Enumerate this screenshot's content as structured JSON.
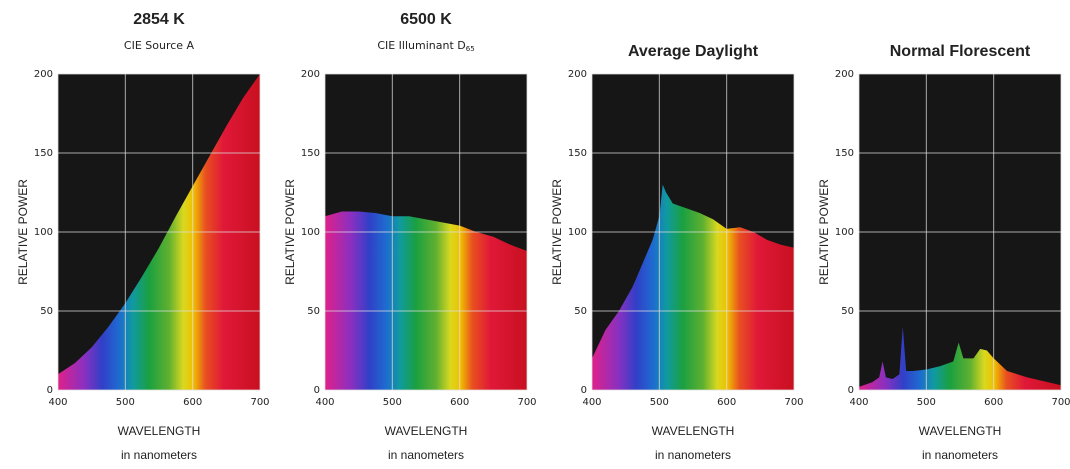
{
  "chart_data": [
    {
      "type": "area",
      "title": "2854 K",
      "subtitle": "CIE Source A",
      "x": [
        400,
        425,
        450,
        475,
        500,
        525,
        550,
        575,
        600,
        625,
        650,
        675,
        700
      ],
      "values": [
        10,
        17,
        27,
        40,
        55,
        72,
        90,
        110,
        129,
        148,
        167,
        185,
        200
      ],
      "xlim": [
        400,
        700
      ],
      "ylim": [
        0,
        200
      ],
      "xticks": [
        400,
        500,
        600,
        700
      ],
      "yticks": [
        0,
        50,
        100,
        150,
        200
      ],
      "grid": true,
      "x_label": "WAVELENGTH",
      "x_sublabel": "in nanometers",
      "y_label": "RELATIVE POWER"
    },
    {
      "type": "area",
      "title": "6500 K",
      "subtitle": "CIE Illuminant D",
      "subtitle_subscript": "65",
      "x": [
        400,
        425,
        450,
        475,
        500,
        525,
        550,
        575,
        600,
        625,
        650,
        675,
        700
      ],
      "values": [
        110,
        113,
        113,
        112,
        110,
        110,
        108,
        106,
        104,
        100,
        97,
        92,
        88
      ],
      "xlim": [
        400,
        700
      ],
      "ylim": [
        0,
        200
      ],
      "xticks": [
        400,
        500,
        600,
        700
      ],
      "yticks": [
        0,
        50,
        100,
        150,
        200
      ],
      "grid": true,
      "x_label": "WAVELENGTH",
      "x_sublabel": "in nanometers",
      "y_label": "RELATIVE POWER"
    },
    {
      "type": "area",
      "title": "Average Daylight",
      "x": [
        400,
        420,
        440,
        460,
        480,
        490,
        500,
        505,
        510,
        520,
        540,
        560,
        580,
        600,
        620,
        640,
        660,
        680,
        700
      ],
      "values": [
        20,
        38,
        50,
        65,
        85,
        95,
        110,
        130,
        125,
        118,
        115,
        112,
        108,
        102,
        103,
        100,
        95,
        92,
        90
      ],
      "xlim": [
        400,
        700
      ],
      "ylim": [
        0,
        200
      ],
      "xticks": [
        400,
        500,
        600,
        700
      ],
      "yticks": [
        0,
        50,
        100,
        150,
        200
      ],
      "grid": true,
      "x_label": "WAVELENGTH",
      "x_sublabel": "in nanometers",
      "y_label": "RELATIVE POWER"
    },
    {
      "type": "area",
      "title": "Normal Florescent",
      "x": [
        400,
        420,
        430,
        435,
        440,
        450,
        460,
        465,
        470,
        480,
        500,
        520,
        540,
        548,
        555,
        570,
        580,
        590,
        600,
        620,
        650,
        700
      ],
      "values": [
        2,
        5,
        8,
        18,
        8,
        7,
        10,
        40,
        12,
        12,
        13,
        15,
        18,
        30,
        20,
        20,
        26,
        25,
        20,
        12,
        8,
        3
      ],
      "xlim": [
        400,
        700
      ],
      "ylim": [
        0,
        200
      ],
      "xticks": [
        400,
        500,
        600,
        700
      ],
      "yticks": [
        0,
        50,
        100,
        150,
        200
      ],
      "grid": true,
      "x_label": "WAVELENGTH",
      "x_sublabel": "in nanometers",
      "y_label": "RELATIVE POWER"
    }
  ]
}
